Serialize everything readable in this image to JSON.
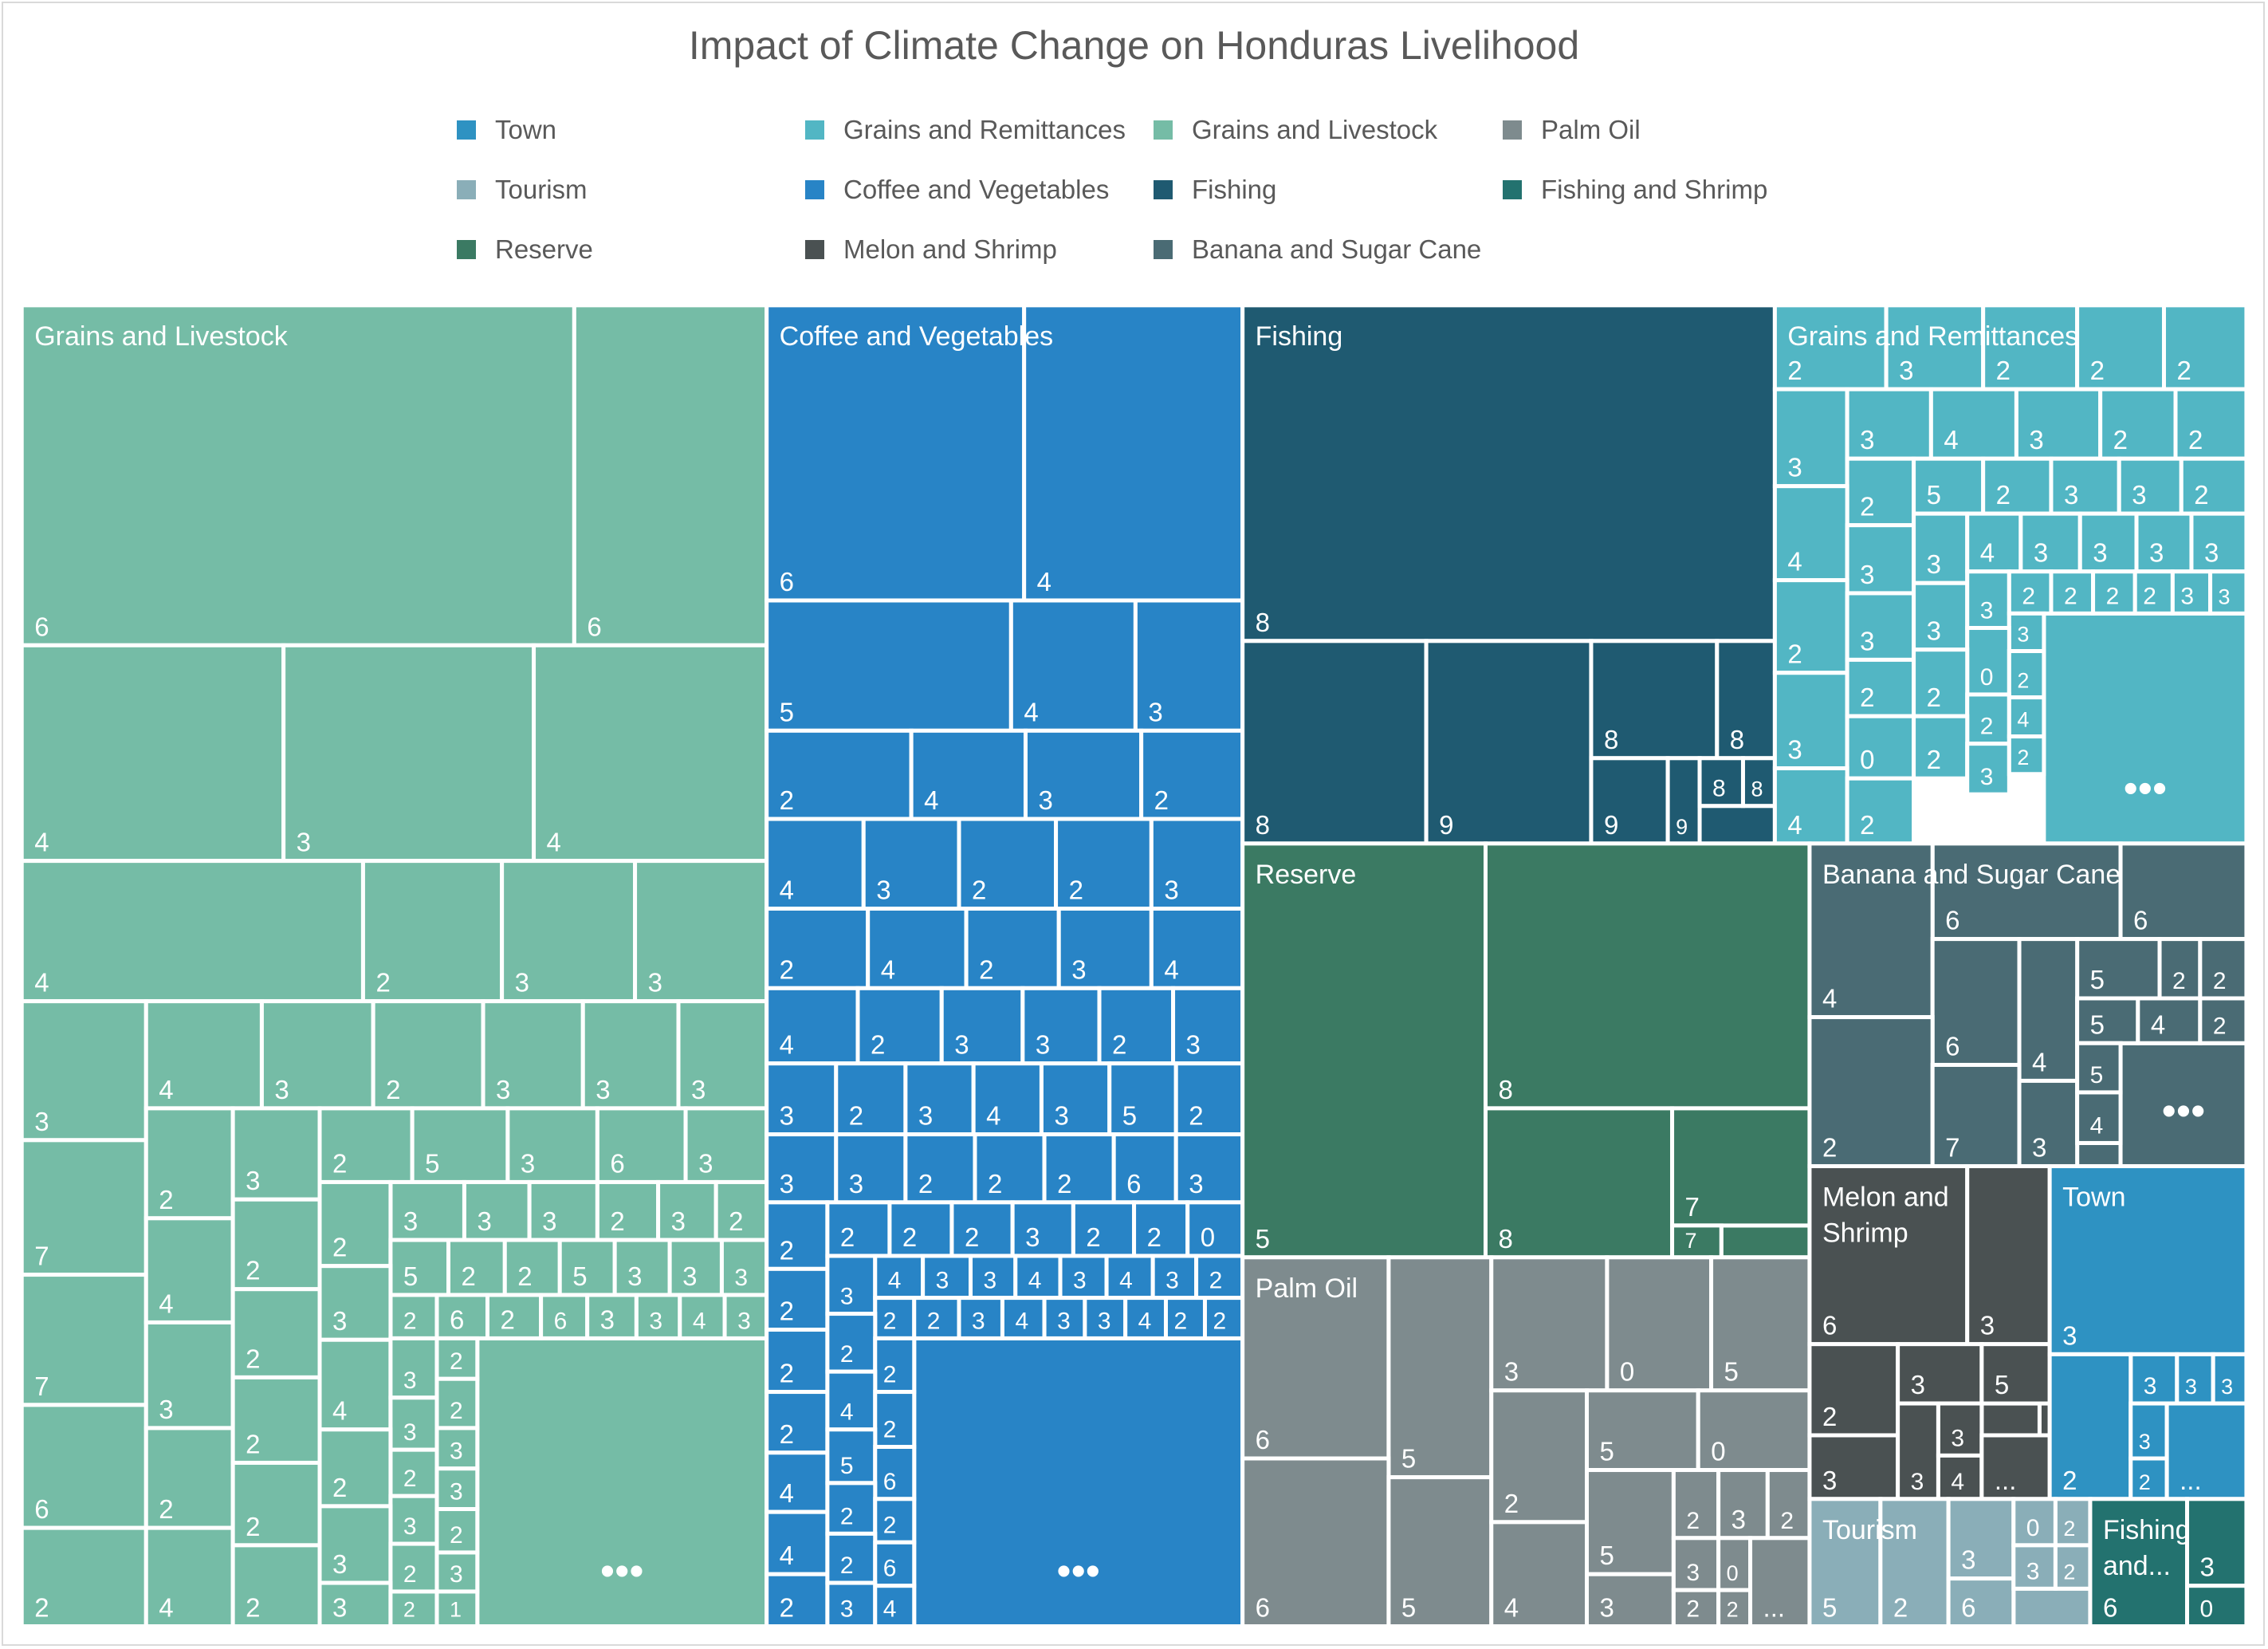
{
  "chart_data": {
    "type": "treemap",
    "title": "Impact of Climate Change on Honduras Livelihood",
    "legend_position": "top",
    "legend": [
      {
        "name": "Town",
        "color": "#2e92c2"
      },
      {
        "name": "Grains and Remittances",
        "color": "#52b6c4"
      },
      {
        "name": "Grains and Livestock",
        "color": "#75bca6"
      },
      {
        "name": "Palm Oil",
        "color": "#7e8b8e"
      },
      {
        "name": "Tourism",
        "color": "#8aaeb8"
      },
      {
        "name": "Coffee and Vegetables",
        "color": "#2884c6"
      },
      {
        "name": "Fishing",
        "color": "#1f5a71"
      },
      {
        "name": "Fishing and Shrimp",
        "color": "#23726f"
      },
      {
        "name": "Reserve",
        "color": "#3b7a63"
      },
      {
        "name": "Melon and Shrimp",
        "color": "#4a5152"
      },
      {
        "name": "Banana and Sugar Cane",
        "color": "#4a6b74"
      }
    ],
    "groups": [
      {
        "name": "Grains and Livestock",
        "values": [
          6,
          6,
          4,
          3,
          4,
          4,
          2,
          3,
          3,
          3,
          4,
          3,
          2,
          3,
          3,
          3,
          7,
          2,
          3,
          2,
          5,
          3,
          6,
          3,
          3,
          3,
          3,
          2,
          3,
          2,
          7,
          4,
          2,
          2,
          5,
          2,
          2,
          5,
          3,
          3,
          3,
          2,
          6,
          2,
          6,
          3,
          3,
          4,
          3,
          3,
          6,
          3,
          2,
          4,
          3,
          2,
          2,
          3,
          3,
          2,
          2,
          2,
          2,
          2,
          3,
          3,
          4,
          2,
          3,
          2,
          2,
          2,
          3,
          2,
          3,
          1
        ]
      },
      {
        "name": "Coffee and Vegetables",
        "values": [
          6,
          4,
          5,
          4,
          3,
          2,
          4,
          3,
          2,
          4,
          3,
          2,
          2,
          3,
          2,
          4,
          2,
          3,
          4,
          4,
          2,
          3,
          3,
          2,
          3,
          3,
          2,
          3,
          4,
          3,
          5,
          2,
          3,
          3,
          2,
          2,
          2,
          6,
          3,
          2,
          2,
          2,
          2,
          3,
          2,
          2,
          0,
          2,
          3,
          4,
          3,
          3,
          4,
          3,
          4,
          3,
          2,
          2,
          2,
          3,
          4,
          3,
          3,
          4,
          2,
          2,
          2,
          2,
          2,
          2,
          4,
          2,
          4,
          5,
          6,
          4,
          2,
          2,
          2,
          2,
          6,
          3,
          4
        ]
      },
      {
        "name": "Fishing",
        "values": [
          8,
          8,
          9,
          8,
          8,
          9,
          9,
          8,
          8
        ]
      },
      {
        "name": "Grains and Remittances",
        "values": [
          2,
          3,
          2,
          2,
          2,
          3,
          3,
          4,
          3,
          2,
          2,
          2,
          5,
          2,
          3,
          3,
          2,
          4,
          3,
          3,
          4,
          3,
          3,
          3,
          3,
          2,
          3,
          3,
          3,
          2,
          2,
          2,
          2,
          3,
          3,
          3,
          0,
          2,
          3,
          2,
          2,
          2,
          4,
          0,
          2,
          3,
          2,
          4,
          2
        ]
      },
      {
        "name": "Reserve",
        "values": [
          5,
          8,
          8,
          7,
          7
        ]
      },
      {
        "name": "Banana and Sugar Cane",
        "values": [
          6,
          6,
          4,
          6,
          2,
          5,
          2,
          2,
          4,
          5,
          4,
          2,
          7,
          3,
          5,
          4
        ]
      },
      {
        "name": "Palm Oil",
        "values": [
          6,
          5,
          3,
          0,
          5,
          5,
          0,
          6,
          5,
          2,
          5,
          2,
          3,
          2,
          4,
          3,
          3,
          0,
          2,
          2,
          "..."
        ]
      },
      {
        "name": "Melon and Shrimp",
        "values": [
          6,
          3,
          2,
          3,
          5,
          3,
          3,
          3,
          4,
          "..."
        ]
      },
      {
        "name": "Town",
        "values": [
          3,
          3,
          3,
          3,
          2,
          3,
          2,
          "..."
        ]
      },
      {
        "name": "Tourism",
        "values": [
          5,
          2,
          3,
          6,
          0,
          2,
          3,
          2
        ]
      },
      {
        "name": "Fishing and Shrimp",
        "values": [
          6,
          3,
          0
        ]
      }
    ],
    "group_labels": {
      "Grains and Livestock": "Grains and Livestock",
      "Coffee and Vegetables": "Coffee and Vegetables",
      "Fishing": "Fishing",
      "Grains and Remittances": "Grains and Remittances",
      "Reserve": "Reserve",
      "Banana and Sugar Cane": "Banana and Sugar Cane",
      "Palm Oil": "Palm Oil",
      "Melon and Shrimp": [
        "Melon and",
        "Shrimp"
      ],
      "Town": "Town",
      "Tourism": "Tourism",
      "Fishing and Shrimp": [
        "Fishing",
        "and..."
      ]
    },
    "overflow_marker": "•••",
    "truncated_marker": "..."
  }
}
